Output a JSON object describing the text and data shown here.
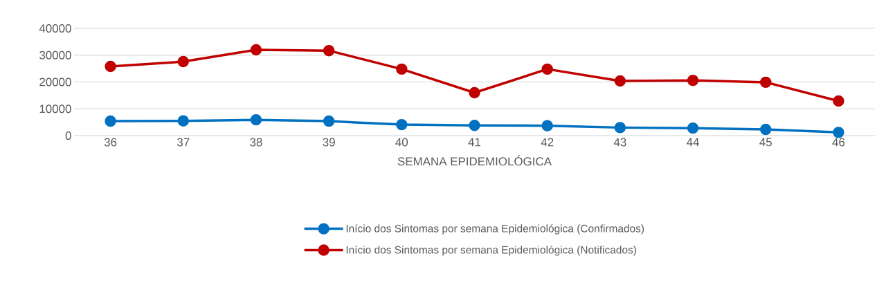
{
  "chart_data": {
    "type": "line",
    "xlabel": "SEMANA EPIDEMIOLÓGICA",
    "categories": [
      "36",
      "37",
      "38",
      "39",
      "40",
      "41",
      "42",
      "43",
      "44",
      "45",
      "46"
    ],
    "series": [
      {
        "name": "Início dos Sintomas por semana Epidemiológica (Confirmados)",
        "color": "#0070c0",
        "values": [
          5400,
          5500,
          5900,
          5400,
          4100,
          3800,
          3700,
          3000,
          2800,
          2300,
          1200
        ]
      },
      {
        "name": "Início dos Sintomas por semana Epidemiológica (Notificados)",
        "color": "#c00000",
        "values": [
          25800,
          27600,
          32000,
          31700,
          24800,
          16000,
          24800,
          20400,
          20600,
          19900,
          12900
        ]
      }
    ],
    "ylim": [
      0,
      40000
    ],
    "yticks": [
      0,
      10000,
      20000,
      30000,
      40000
    ],
    "grid": "y",
    "legend": "bottom",
    "marker": "circle",
    "line_style": "solid"
  }
}
